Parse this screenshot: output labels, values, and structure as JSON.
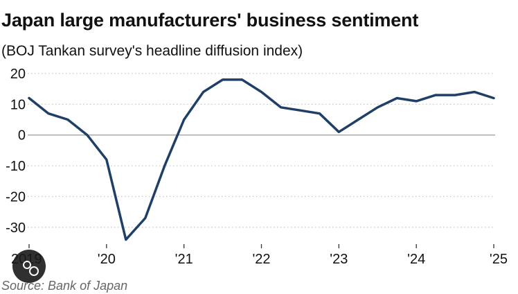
{
  "title": "Japan large manufacturers' business sentiment",
  "subtitle": "(BOJ Tankan survey's headline diffusion index)",
  "source": "Source: Bank of Japan",
  "chart_data": {
    "type": "line",
    "title": "Japan large manufacturers' business sentiment",
    "subtitle": "(BOJ Tankan survey's headline diffusion index)",
    "xlabel": "",
    "ylabel": "",
    "ylim": [
      -35,
      20
    ],
    "yticks": [
      20,
      10,
      0,
      -10,
      -20,
      -30
    ],
    "xtick_labels": [
      "2019",
      "'20",
      "'21",
      "'22",
      "'23",
      "'24",
      "'25"
    ],
    "x": [
      "2019 Q1",
      "2019 Q2",
      "2019 Q3",
      "2019 Q4",
      "2020 Q1",
      "2020 Q2",
      "2020 Q3",
      "2020 Q4",
      "2021 Q1",
      "2021 Q2",
      "2021 Q3",
      "2021 Q4",
      "2022 Q1",
      "2022 Q2",
      "2022 Q3",
      "2022 Q4",
      "2023 Q1",
      "2023 Q2",
      "2023 Q3",
      "2023 Q4",
      "2024 Q1",
      "2024 Q2",
      "2024 Q3",
      "2024 Q4",
      "2025 Q1"
    ],
    "series": [
      {
        "values": [
          12,
          7,
          5,
          0,
          -8,
          -34,
          -27,
          -10,
          5,
          14,
          18,
          18,
          14,
          9,
          8,
          7,
          1,
          5,
          9,
          12,
          11,
          13,
          13,
          14,
          12
        ]
      }
    ],
    "grid": true,
    "line_color": "#1f3f66",
    "grid_color": "#c8c8c8",
    "zero_line_color": "#999999"
  }
}
